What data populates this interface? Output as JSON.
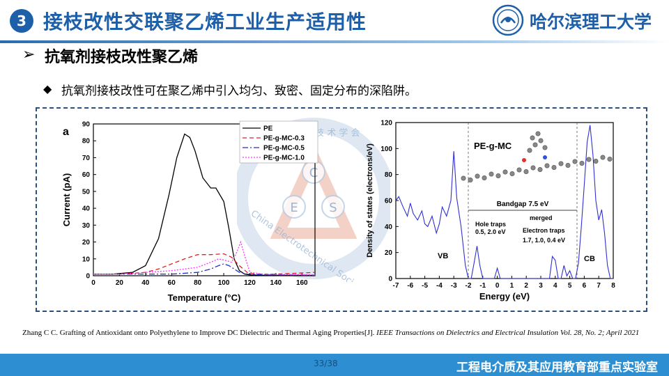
{
  "header": {
    "section_number": "3",
    "title": "接枝改性交联聚乙烯工业生产适用性",
    "university": "哈尔滨理工大学",
    "colors": {
      "primary": "#1d5fa8",
      "footer": "#2d8fd1"
    }
  },
  "subtitle": {
    "marker": "➢",
    "text": "抗氧剂接枝改性聚乙烯"
  },
  "bullet": {
    "marker": "◆",
    "text": "抗氧剂接枝改性可在聚乙烯中引入均匀、致密、固定分布的深陷阱。"
  },
  "watermark": {
    "letters": [
      "C",
      "E",
      "S"
    ],
    "ring_text": "China Electrotechnical Society",
    "top_text": "中 国 电 工 技 术 学 会"
  },
  "chart_data": [
    {
      "type": "line",
      "panel_label": "a",
      "xlabel": "Temperature (°C)",
      "ylabel": "Current (pA)",
      "xlim": [
        0,
        170
      ],
      "ylim": [
        0,
        90
      ],
      "xticks": [
        0,
        20,
        40,
        60,
        80,
        100,
        120,
        140,
        160
      ],
      "yticks": [
        0,
        10,
        20,
        30,
        40,
        50,
        60,
        70,
        80,
        90
      ],
      "legend_position": "top-right",
      "series": [
        {
          "name": "PE",
          "color": "#000000",
          "dash": "solid",
          "x": [
            0,
            15,
            30,
            40,
            50,
            58,
            64,
            70,
            74,
            78,
            84,
            90,
            94,
            100,
            104,
            108,
            112,
            116,
            120,
            130,
            170
          ],
          "y": [
            1,
            1,
            2,
            6,
            22,
            48,
            70,
            84,
            82,
            74,
            58,
            52,
            52,
            44,
            28,
            10,
            3,
            1,
            0.5,
            0.3,
            0.2
          ]
        },
        {
          "name": "PE-g-MC-0.3",
          "color": "#e02020",
          "dash": "6,4",
          "x": [
            0,
            20,
            40,
            50,
            60,
            70,
            80,
            90,
            100,
            106,
            112,
            118,
            124,
            140,
            170
          ],
          "y": [
            1,
            1,
            2,
            4,
            7,
            10,
            12.5,
            12.5,
            13,
            11,
            6,
            2,
            1,
            1,
            2
          ]
        },
        {
          "name": "PE-g-MC-0.5",
          "color": "#2030c0",
          "dash": "8,3,2,3",
          "x": [
            0,
            20,
            40,
            60,
            80,
            90,
            96,
            100,
            104,
            108,
            112,
            118,
            130,
            170
          ],
          "y": [
            1,
            1,
            1,
            1,
            2,
            4,
            6,
            7,
            6,
            4,
            2,
            1,
            0.5,
            0.3
          ]
        },
        {
          "name": "PE-g-MC-1.0",
          "color": "#ff30ff",
          "dash": "2,2",
          "x": [
            0,
            20,
            40,
            60,
            80,
            90,
            96,
            102,
            106,
            110,
            113,
            116,
            120,
            130,
            170
          ],
          "y": [
            1,
            1,
            2,
            3,
            5,
            8,
            10,
            9,
            8,
            14,
            20,
            12,
            2,
            1,
            0.5
          ]
        }
      ]
    },
    {
      "type": "line",
      "xlabel": "Energy (eV)",
      "ylabel": "Density of states (electrons/eV)",
      "xlim": [
        -7,
        8
      ],
      "ylim": [
        0,
        120
      ],
      "xticks": [
        -7,
        -6,
        -5,
        -4,
        -3,
        -2,
        -1,
        0,
        1,
        2,
        3,
        4,
        5,
        6,
        7,
        8
      ],
      "yticks": [
        0,
        20,
        40,
        60,
        80,
        100,
        120
      ],
      "series": [
        {
          "name": "PE-g-MC",
          "color": "#3030d0",
          "x": [
            -7,
            -6.8,
            -6.5,
            -6.2,
            -6,
            -5.8,
            -5.5,
            -5.2,
            -5,
            -4.8,
            -4.5,
            -4.2,
            -4,
            -3.8,
            -3.5,
            -3.2,
            -3,
            -2.8,
            -2.5,
            -2.2,
            -2,
            -1.8,
            -1.6,
            -1.4,
            -1.2,
            -1,
            -0.5,
            -0.2,
            0,
            0.2,
            0.5,
            1,
            2,
            3,
            3.6,
            3.8,
            4,
            4.2,
            4.4,
            4.6,
            4.8,
            5,
            5.2,
            5.4,
            5.6,
            5.8,
            6,
            6.2,
            6.4,
            6.6,
            6.8,
            7,
            7.2,
            7.4,
            7.6,
            7.8,
            8
          ],
          "y": [
            60,
            63,
            55,
            48,
            58,
            50,
            45,
            52,
            42,
            40,
            48,
            35,
            42,
            55,
            48,
            60,
            98,
            62,
            40,
            10,
            0,
            0,
            12,
            25,
            10,
            0,
            0,
            0,
            8,
            0,
            0,
            0,
            0,
            0,
            0,
            17,
            14,
            0,
            0,
            10,
            2,
            6,
            0,
            0,
            12,
            40,
            72,
            105,
            118,
            95,
            60,
            45,
            53,
            35,
            10,
            0,
            0
          ]
        }
      ],
      "annotations": {
        "title": "PE-g-MC",
        "bandgap": "Bandgap 7.5 eV",
        "hole_traps": "Hole traps",
        "hole_traps_values": "0.5, 2.0 eV",
        "electron_traps": "Electron traps",
        "electron_traps_values": "1.7, 1.0, 0.4 eV",
        "merged": "merged",
        "vb": "VB",
        "cb": "CB"
      }
    }
  ],
  "reference": {
    "plain": "Zhang C C. Grafting of Antioxidant onto Polyethylene to Improve DC Dielectric and Thermal Aging Properties[J]. ",
    "italic": "IEEE Transactions on Dielectrics and Electrical Insulation Vol. 28, No. 2; April 2021"
  },
  "footer": {
    "page": "33/38",
    "lab": "工程电介质及其应用教育部重点实验室"
  }
}
